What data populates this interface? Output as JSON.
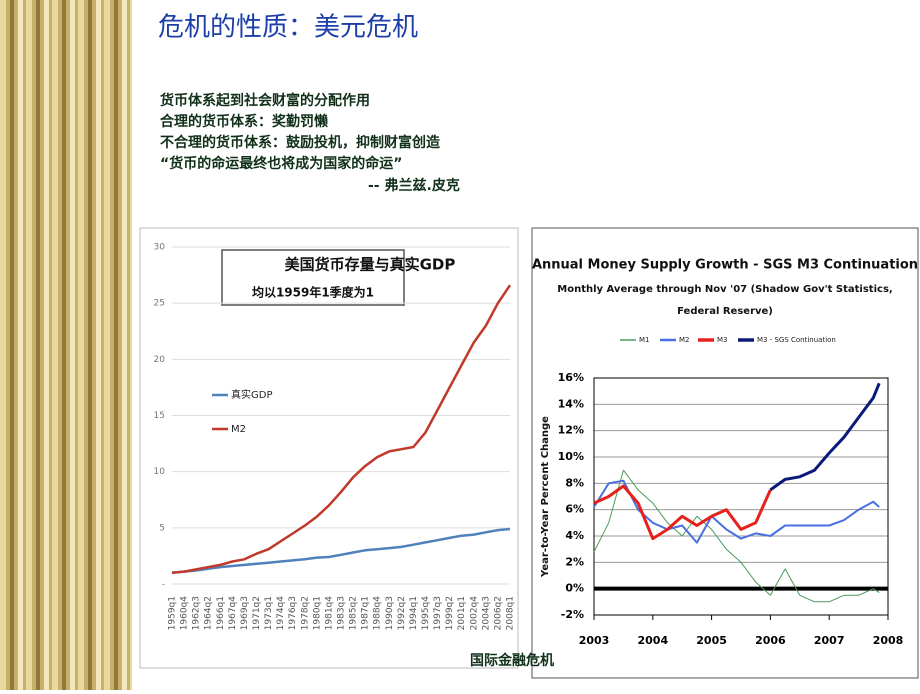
{
  "slide": {
    "title": "危机的性质：美元危机",
    "body": [
      "货币体系起到社会财富的分配作用",
      "合理的货币体系：奖勤罚懒",
      "不合理的货币体系：鼓励投机，抑制财富创造",
      "“货币的命运最终也将成为国家的命运”"
    ],
    "attribution": "-- 弗兰兹.皮克",
    "footer": "国际金融危机"
  },
  "chart_data": [
    {
      "type": "line",
      "title": "美国货币存量与真实GDP",
      "subtitle": "均以1959年1季度为1",
      "categories": [
        "1959q1",
        "1960q4",
        "1962q3",
        "1964q2",
        "1966q1",
        "1967q4",
        "1969q3",
        "1971q2",
        "1973q1",
        "1974q4",
        "1976q3",
        "1978q2",
        "1980q1",
        "1981q4",
        "1983q3",
        "1985q2",
        "1987q1",
        "1988q4",
        "1990q3",
        "1992q2",
        "1994q1",
        "1995q4",
        "1997q3",
        "1999q2",
        "2001q1",
        "2002q4",
        "2004q3",
        "2006q2",
        "2008q1"
      ],
      "series": [
        {
          "name": "真实GDP",
          "color": "#4f81bd",
          "values": [
            1,
            1.1,
            1.2,
            1.35,
            1.5,
            1.6,
            1.7,
            1.8,
            1.9,
            2.0,
            2.1,
            2.2,
            2.35,
            2.4,
            2.6,
            2.8,
            3.0,
            3.1,
            3.2,
            3.3,
            3.5,
            3.7,
            3.9,
            4.1,
            4.3,
            4.4,
            4.6,
            4.8,
            4.9
          ]
        },
        {
          "name": "M2",
          "color": "#c0392b",
          "values": [
            1,
            1.1,
            1.3,
            1.5,
            1.7,
            2.0,
            2.2,
            2.7,
            3.1,
            3.8,
            4.5,
            5.2,
            6.0,
            7.0,
            8.2,
            9.5,
            10.5,
            11.3,
            11.8,
            12.0,
            12.2,
            13.5,
            15.5,
            17.5,
            19.5,
            21.5,
            23,
            25,
            26.6
          ]
        }
      ],
      "ylim": [
        0,
        30
      ],
      "yticks": [
        {
          "value": 0,
          "label": "-"
        },
        5,
        10,
        15,
        20,
        25,
        30
      ],
      "grid": true,
      "legend": "left"
    },
    {
      "type": "line",
      "title": "Annual Money Supply Growth - SGS M3 Continuation",
      "subtitle": "Monthly Average through Nov '07 (Shadow Gov't Statistics, Federal Reserve)",
      "y_label": "Year-to-Year Percent Change",
      "x": [
        2003,
        2003.25,
        2003.5,
        2003.75,
        2004,
        2004.25,
        2004.5,
        2004.75,
        2005,
        2005.25,
        2005.5,
        2005.75,
        2006,
        2006.25,
        2006.5,
        2006.75,
        2007,
        2007.25,
        2007.5,
        2007.75,
        2007.85
      ],
      "series": [
        {
          "name": "M1",
          "color": "#4a9a5a",
          "values": [
            2.8,
            5,
            9,
            7.5,
            6.5,
            5,
            4,
            5.5,
            4.5,
            3,
            2,
            0.5,
            -0.5,
            1.5,
            -0.5,
            -1,
            -1,
            -0.5,
            -0.5,
            0,
            -0.3
          ]
        },
        {
          "name": "M2",
          "color": "#4a6fe0",
          "values": [
            6.2,
            8.0,
            8.2,
            6.0,
            5.0,
            4.5,
            4.8,
            3.5,
            5.5,
            4.5,
            3.8,
            4.2,
            4.0,
            4.8,
            4.8,
            4.8,
            4.8,
            5.2,
            6.0,
            6.6,
            6.2
          ]
        },
        {
          "name": "M3",
          "color": "#e8201a",
          "values": [
            6.5,
            7.0,
            7.8,
            6.5,
            3.8,
            4.5,
            5.5,
            4.8,
            5.5,
            6.0,
            4.5,
            5.0,
            7.5,
            null,
            null,
            null,
            null,
            null,
            null,
            null,
            null
          ]
        },
        {
          "name": "M3 - SGS Continuation",
          "color": "#0a1a7a",
          "values": [
            null,
            null,
            null,
            null,
            null,
            null,
            null,
            null,
            null,
            null,
            null,
            null,
            7.5,
            8.3,
            8.5,
            9.0,
            10.3,
            11.5,
            13,
            14.5,
            15.6
          ]
        }
      ],
      "xlim": [
        2003,
        2008
      ],
      "xticks": [
        2003,
        2004,
        2005,
        2006,
        2007,
        2008
      ],
      "ylim": [
        -2,
        16
      ],
      "yticks": [
        {
          "value": -2,
          "label": "-2%"
        },
        {
          "value": 0,
          "label": "0%"
        },
        {
          "value": 2,
          "label": "2%"
        },
        {
          "value": 4,
          "label": "4%"
        },
        {
          "value": 6,
          "label": "6%"
        },
        {
          "value": 8,
          "label": "8%"
        },
        {
          "value": 10,
          "label": "10%"
        },
        {
          "value": 12,
          "label": "12%"
        },
        {
          "value": 14,
          "label": "14%"
        },
        {
          "value": 16,
          "label": "16%"
        }
      ],
      "grid": true,
      "legend": "top"
    }
  ]
}
